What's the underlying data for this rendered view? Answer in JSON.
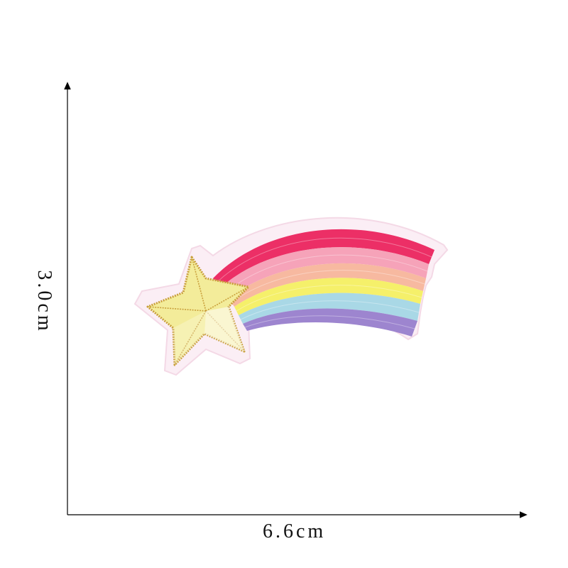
{
  "dimensions": {
    "width_label": "6.6cm",
    "height_label": "3.0cm"
  },
  "product": {
    "icon": "shooting-star-rainbow-patch",
    "colors": {
      "backing": "#fbeef5",
      "star_fill": "#f3ec9a",
      "star_outline": "#c9a03c",
      "stripes": [
        "#ec2f66",
        "#f6a3b9",
        "#f7b9a0",
        "#f5f06a",
        "#a9d8e6",
        "#9d85cf"
      ]
    }
  }
}
